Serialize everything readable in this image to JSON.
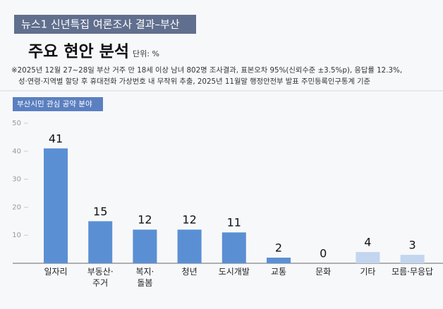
{
  "header": {
    "banner": "뉴스1 신년특집 여론조사 결과–부산",
    "title": "주요 현안 분석",
    "unit": "단위: %",
    "notes": [
      "※2025년 12월 27~28일 부산 거주 만 18세 이상 남녀 802명 조사결과, 표본오차 95%(신뢰수준 ±3.5%p), 응답률 12.3%,",
      "성·연령·지역별 할당 후 휴대전화 가상번호 내 무작위 추출, 2025년 11월말 행정안전부 발표 주민등록인구통계 기준"
    ]
  },
  "chart_data": {
    "type": "bar",
    "title": "부산시민 관심 공약 분야",
    "categories": [
      "일자리",
      "부동산·\n주거",
      "복지·\n돌봄",
      "청년",
      "도시개발",
      "교통",
      "문화",
      "기타",
      "모름·무응답"
    ],
    "values": [
      41,
      15,
      12,
      12,
      11,
      2,
      0,
      4,
      3
    ],
    "colors": [
      "#5b8fd4",
      "#5b8fd4",
      "#5b8fd4",
      "#5b8fd4",
      "#5b8fd4",
      "#5b8fd4",
      "#5b8fd4",
      "#c3d5ef",
      "#c3d5ef"
    ],
    "ylim": [
      0,
      50
    ],
    "yticks": [
      10,
      20,
      30,
      40,
      50
    ]
  }
}
